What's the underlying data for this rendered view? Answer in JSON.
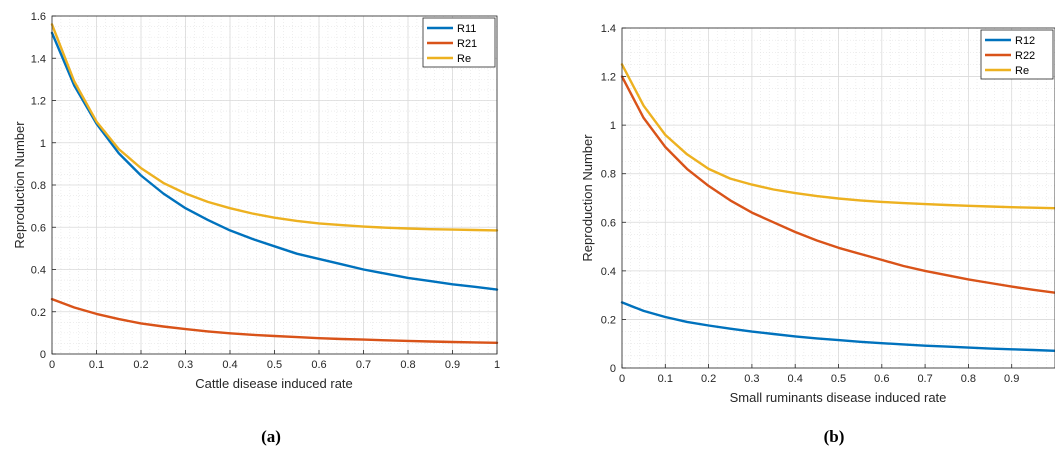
{
  "chart_data": [
    {
      "type": "line",
      "panel_label": "(a)",
      "xlabel": "Cattle disease induced rate",
      "ylabel": "Reproduction Number",
      "xlim": [
        0,
        1
      ],
      "ylim": [
        0,
        1.6
      ],
      "xticks": [
        0,
        0.1,
        0.2,
        0.3,
        0.4,
        0.5,
        0.6,
        0.7,
        0.8,
        0.9,
        1
      ],
      "yticks": [
        0,
        0.2,
        0.4,
        0.6,
        0.8,
        1,
        1.2,
        1.4,
        1.6
      ],
      "grid": true,
      "minor_grid": true,
      "legend_position": "top-right",
      "x": [
        0,
        0.05,
        0.1,
        0.15,
        0.2,
        0.25,
        0.3,
        0.35,
        0.4,
        0.45,
        0.5,
        0.55,
        0.6,
        0.65,
        0.7,
        0.75,
        0.8,
        0.85,
        0.9,
        0.95,
        1
      ],
      "series": [
        {
          "name": "R11",
          "color": "#0072BD",
          "values": [
            1.52,
            1.27,
            1.09,
            0.95,
            0.845,
            0.76,
            0.69,
            0.635,
            0.585,
            0.545,
            0.51,
            0.475,
            0.45,
            0.425,
            0.4,
            0.38,
            0.36,
            0.345,
            0.33,
            0.318,
            0.305
          ]
        },
        {
          "name": "R21",
          "color": "#D95319",
          "values": [
            0.26,
            0.22,
            0.19,
            0.165,
            0.145,
            0.13,
            0.118,
            0.107,
            0.098,
            0.091,
            0.085,
            0.08,
            0.075,
            0.071,
            0.068,
            0.065,
            0.062,
            0.059,
            0.057,
            0.055,
            0.053
          ]
        },
        {
          "name": "Re",
          "color": "#EDB120",
          "values": [
            1.56,
            1.29,
            1.1,
            0.97,
            0.88,
            0.81,
            0.76,
            0.72,
            0.69,
            0.665,
            0.645,
            0.63,
            0.618,
            0.61,
            0.603,
            0.598,
            0.594,
            0.591,
            0.589,
            0.587,
            0.585
          ]
        }
      ]
    },
    {
      "type": "line",
      "panel_label": "(b)",
      "xlabel": "Small ruminants disease induced rate",
      "ylabel": "Reproduction Number",
      "xlim": [
        0,
        1
      ],
      "ylim": [
        0,
        1.4
      ],
      "xticks": [
        0,
        0.1,
        0.2,
        0.3,
        0.4,
        0.5,
        0.6,
        0.7,
        0.8,
        0.9
      ],
      "yticks": [
        0,
        0.2,
        0.4,
        0.6,
        0.8,
        1,
        1.2,
        1.4
      ],
      "grid": true,
      "minor_grid": true,
      "legend_position": "top-right",
      "x": [
        0,
        0.05,
        0.1,
        0.15,
        0.2,
        0.25,
        0.3,
        0.35,
        0.4,
        0.45,
        0.5,
        0.55,
        0.6,
        0.65,
        0.7,
        0.75,
        0.8,
        0.85,
        0.9,
        0.95,
        1
      ],
      "series": [
        {
          "name": "R12",
          "color": "#0072BD",
          "values": [
            0.27,
            0.235,
            0.21,
            0.19,
            0.175,
            0.162,
            0.15,
            0.14,
            0.13,
            0.122,
            0.115,
            0.108,
            0.102,
            0.097,
            0.092,
            0.088,
            0.084,
            0.08,
            0.077,
            0.074,
            0.071
          ]
        },
        {
          "name": "R22",
          "color": "#D95319",
          "values": [
            1.2,
            1.03,
            0.91,
            0.82,
            0.75,
            0.69,
            0.64,
            0.6,
            0.56,
            0.525,
            0.495,
            0.47,
            0.445,
            0.42,
            0.4,
            0.382,
            0.365,
            0.35,
            0.335,
            0.322,
            0.31
          ]
        },
        {
          "name": "Re",
          "color": "#EDB120",
          "values": [
            1.25,
            1.08,
            0.96,
            0.88,
            0.82,
            0.78,
            0.755,
            0.735,
            0.72,
            0.708,
            0.698,
            0.69,
            0.684,
            0.679,
            0.675,
            0.671,
            0.668,
            0.665,
            0.662,
            0.66,
            0.658
          ]
        }
      ]
    }
  ]
}
